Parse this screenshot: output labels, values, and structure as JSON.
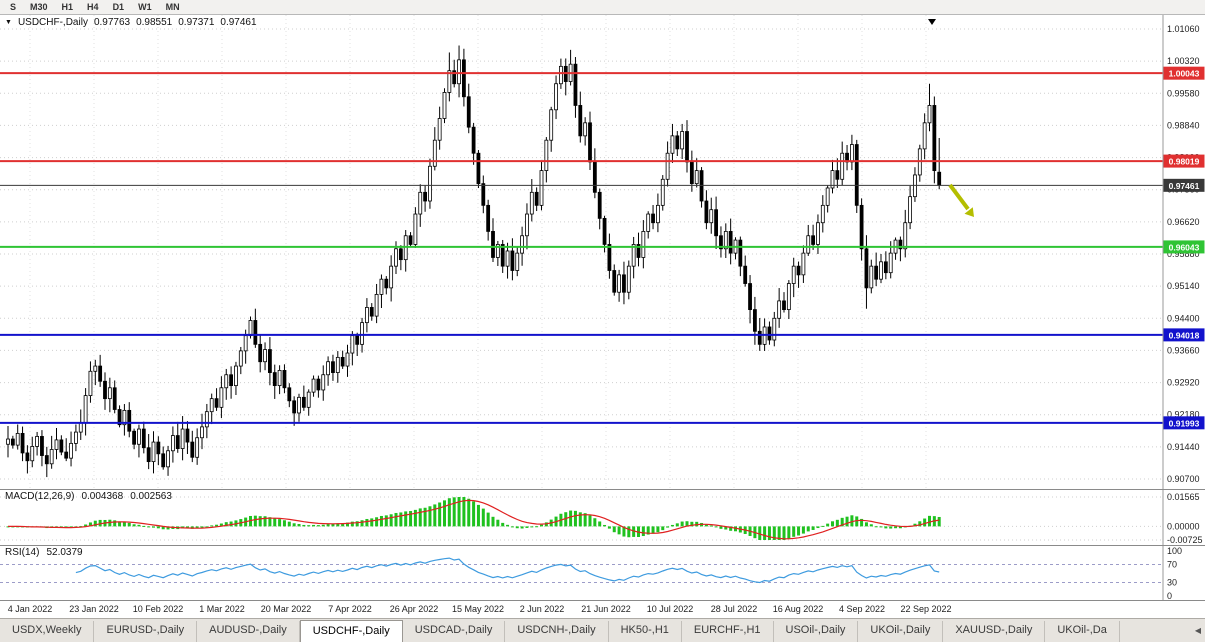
{
  "toolbar": {
    "timeframes": [
      "S",
      "M30",
      "H1",
      "H4",
      "D1",
      "W1",
      "MN"
    ]
  },
  "legend": {
    "symbol": "USDCHF-,Daily",
    "open": "0.97763",
    "high": "0.98551",
    "low": "0.97371",
    "close": "0.97461"
  },
  "panels": {
    "macd": {
      "title": "MACD(12,26,9)",
      "v1": "0.004368",
      "v2": "0.002563"
    },
    "rsi": {
      "title": "RSI(14)",
      "v": "52.0379"
    }
  },
  "tabs": {
    "items": [
      "USDX,Weekly",
      "EURUSD-,Daily",
      "AUDUSD-,Daily",
      "USDCHF-,Daily",
      "USDCAD-,Daily",
      "USDCNH-,Daily",
      "HK50-,H1",
      "EURCHF-,H1",
      "USOil-,Daily",
      "UKOil-,Daily",
      "XAUUSD-,Daily",
      "UKOil-,Da"
    ],
    "active": "USDCHF-,Daily",
    "scroll_left_icon": "◀"
  },
  "chart_data": [
    {
      "type": "candlestick",
      "title": "USDCHF-,Daily",
      "ylim": [
        0.907,
        1.0106
      ],
      "y_ticks": [
        "1.01060",
        "1.00320",
        "0.99580",
        "0.98840",
        "0.98100",
        "0.97360",
        "0.96620",
        "0.95880",
        "0.95140",
        "0.94400",
        "0.93660",
        "0.92920",
        "0.92180",
        "0.91440",
        "0.90700"
      ],
      "x_labels": [
        "4 Jan 2022",
        "23 Jan 2022",
        "10 Feb 2022",
        "1 Mar 2022",
        "20 Mar 2022",
        "7 Apr 2022",
        "26 Apr 2022",
        "15 May 2022",
        "2 Jun 2022",
        "21 Jun 2022",
        "10 Jul 2022",
        "28 Jul 2022",
        "16 Aug 2022",
        "4 Sep 2022",
        "22 Sep 2022"
      ],
      "closes": [
        0.9162,
        0.9148,
        0.9175,
        0.913,
        0.9112,
        0.9145,
        0.9168,
        0.9124,
        0.9105,
        0.9138,
        0.916,
        0.9132,
        0.9118,
        0.9152,
        0.9178,
        0.92,
        0.9262,
        0.9318,
        0.933,
        0.9295,
        0.9255,
        0.928,
        0.923,
        0.9195,
        0.9228,
        0.918,
        0.915,
        0.9185,
        0.9142,
        0.911,
        0.9155,
        0.9128,
        0.9098,
        0.9135,
        0.917,
        0.914,
        0.9185,
        0.9155,
        0.912,
        0.9165,
        0.919,
        0.9225,
        0.9255,
        0.9235,
        0.928,
        0.931,
        0.9285,
        0.933,
        0.9365,
        0.94,
        0.9435,
        0.938,
        0.934,
        0.9368,
        0.9315,
        0.9285,
        0.932,
        0.928,
        0.925,
        0.9222,
        0.9258,
        0.9235,
        0.927,
        0.93,
        0.9275,
        0.931,
        0.934,
        0.9315,
        0.935,
        0.933,
        0.936,
        0.94,
        0.938,
        0.943,
        0.9465,
        0.9445,
        0.9495,
        0.953,
        0.951,
        0.956,
        0.96,
        0.9575,
        0.963,
        0.961,
        0.968,
        0.973,
        0.971,
        0.979,
        0.985,
        0.99,
        0.996,
        1.001,
        0.998,
        1.0035,
        0.995,
        0.988,
        0.982,
        0.975,
        0.97,
        0.964,
        0.958,
        0.961,
        0.956,
        0.9595,
        0.955,
        0.959,
        0.963,
        0.968,
        0.973,
        0.97,
        0.978,
        0.985,
        0.992,
        0.998,
        1.002,
        0.9985,
        1.0025,
        0.993,
        0.986,
        0.989,
        0.98,
        0.973,
        0.967,
        0.961,
        0.955,
        0.95,
        0.954,
        0.95,
        0.956,
        0.961,
        0.958,
        0.964,
        0.968,
        0.966,
        0.97,
        0.976,
        0.982,
        0.986,
        0.983,
        0.987,
        0.98,
        0.975,
        0.978,
        0.971,
        0.966,
        0.969,
        0.963,
        0.96,
        0.964,
        0.959,
        0.962,
        0.956,
        0.952,
        0.946,
        0.941,
        0.938,
        0.942,
        0.939,
        0.944,
        0.948,
        0.946,
        0.952,
        0.956,
        0.954,
        0.959,
        0.963,
        0.961,
        0.966,
        0.97,
        0.974,
        0.978,
        0.976,
        0.982,
        0.98,
        0.984,
        0.97,
        0.96,
        0.951,
        0.956,
        0.953,
        0.957,
        0.9545,
        0.959,
        0.962,
        0.96,
        0.966,
        0.972,
        0.977,
        0.983,
        0.989,
        0.993,
        0.978,
        0.97461
      ],
      "last_candle": {
        "open": 0.97763,
        "high": 0.98551,
        "low": 0.97371,
        "close": 0.97461
      },
      "wick_overrides": {
        "91": [
          1.0052,
          null
        ],
        "93": [
          1.0068,
          null
        ],
        "116": [
          1.0058,
          null
        ],
        "126": [
          null,
          0.9478
        ],
        "155": [
          null,
          0.9365
        ],
        "177": [
          null,
          0.9462
        ],
        "190": [
          0.998,
          null
        ]
      },
      "hlines": [
        {
          "value": 1.00043,
          "label": "1.00043",
          "color": "#e03030",
          "width": 2
        },
        {
          "value": 0.98019,
          "label": "0.98019",
          "color": "#e03030",
          "width": 2
        },
        {
          "value": 0.97461,
          "label": "0.97461",
          "color": "#383838",
          "width": 1
        },
        {
          "value": 0.96043,
          "label": "0.96043",
          "color": "#2fc434",
          "width": 2
        },
        {
          "value": 0.94018,
          "label": "0.94018",
          "color": "#1212cc",
          "width": 2
        },
        {
          "value": 0.91993,
          "label": "0.91993",
          "color": "#1212cc",
          "width": 2
        }
      ],
      "annotation_arrow": {
        "shape": "arrow",
        "direction": "down-right",
        "color": "#b4be00"
      }
    },
    {
      "type": "bar",
      "title": "MACD(12,26,9)",
      "derived": "macd_of_closes",
      "display_values": [
        "0.004368",
        "0.002563"
      ],
      "ylim": [
        -0.00725,
        0.01565
      ],
      "y_tick_values": [
        0.01565,
        0,
        -0.00725
      ],
      "y_ticks": [
        "0.01565",
        "0.00000",
        "-0.00725"
      ],
      "colors": {
        "histogram": "#1fc11f",
        "signal": "#e02020"
      }
    },
    {
      "type": "line",
      "title": "RSI(14)",
      "derived": "rsi_of_closes",
      "display_value": "52.0379",
      "ylim": [
        0,
        100
      ],
      "y_tick_values": [
        100,
        70,
        30,
        0
      ],
      "y_ticks": [
        "100",
        "70",
        "30",
        "0"
      ],
      "levels": [
        70,
        30
      ],
      "color": "#3e9bdf"
    }
  ]
}
